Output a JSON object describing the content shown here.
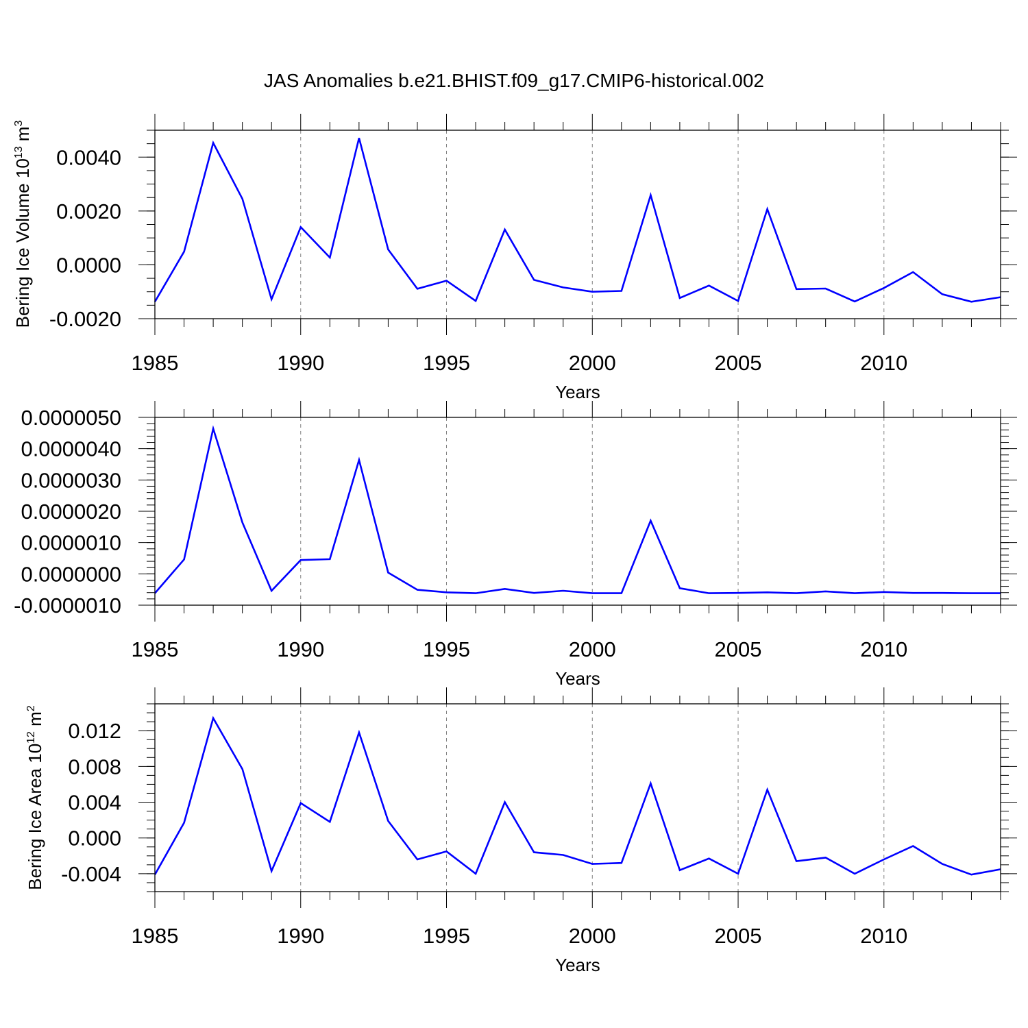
{
  "title": "JAS Anomalies b.e21.BHIST.f09_g17.CMIP6-historical.002",
  "colors": {
    "line": "#0000ff",
    "axis": "#000000",
    "grid": "#808080"
  },
  "chart_data": [
    {
      "type": "line",
      "xlabel": "Years",
      "ylabel": {
        "text": "Bering Ice Volume 10",
        "sup": "13",
        "unit": " m",
        "unit_sup": "3"
      },
      "xlim": [
        1985,
        2014
      ],
      "ylim": [
        -0.002,
        0.005
      ],
      "xticks": [
        1985,
        1990,
        1995,
        2000,
        2005,
        2010
      ],
      "xtick_labels": [
        "1985",
        "1990",
        "1995",
        "2000",
        "2005",
        "2010"
      ],
      "yticks": [
        -0.002,
        0.0,
        0.002,
        0.004
      ],
      "ytick_labels": [
        "-0.0020",
        "0.0000",
        "0.0020",
        "0.0040"
      ],
      "grid": "vertical dashed at major x ticks",
      "series": [
        {
          "x": [
            1985,
            1986,
            1987,
            1988,
            1989,
            1990,
            1991,
            1992,
            1993,
            1994,
            1995,
            1996,
            1997,
            1998,
            1999,
            2000,
            2001,
            2002,
            2003,
            2004,
            2005,
            2006,
            2007,
            2008,
            2009,
            2010,
            2011,
            2012,
            2013,
            2014
          ],
          "values": [
            -0.00137,
            0.00049,
            0.00453,
            0.00245,
            -0.00128,
            0.0014,
            0.00027,
            0.00471,
            0.00057,
            -0.00089,
            -0.00059,
            -0.00134,
            0.00131,
            -0.00056,
            -0.00084,
            -0.001,
            -0.00097,
            0.00259,
            -0.00123,
            -0.00077,
            -0.00134,
            0.00207,
            -0.0009,
            -0.00088,
            -0.00136,
            -0.00086,
            -0.00027,
            -0.00109,
            -0.00137,
            -0.0012
          ]
        }
      ]
    },
    {
      "type": "line",
      "xlabel": "Years",
      "xlim": [
        1985,
        2014
      ],
      "ylim": [
        -1e-06,
        5e-06
      ],
      "xticks": [
        1985,
        1990,
        1995,
        2000,
        2005,
        2010
      ],
      "xtick_labels": [
        "1985",
        "1990",
        "1995",
        "2000",
        "2005",
        "2010"
      ],
      "yticks": [
        -1e-06,
        0.0,
        1e-06,
        2e-06,
        3e-06,
        4e-06,
        5e-06
      ],
      "ytick_labels": [
        "-0.0000010",
        "0.0000000",
        "0.0000010",
        "0.0000020",
        "0.0000030",
        "0.0000040",
        "0.0000050"
      ],
      "grid": "vertical dashed at major x ticks",
      "series": [
        {
          "x": [
            1985,
            1986,
            1987,
            1988,
            1989,
            1990,
            1991,
            1992,
            1993,
            1994,
            1995,
            1996,
            1997,
            1998,
            1999,
            2000,
            2001,
            2002,
            2003,
            2004,
            2005,
            2006,
            2007,
            2008,
            2009,
            2010,
            2011,
            2012,
            2013,
            2014
          ],
          "values": [
            -6.2e-07,
            4.6e-07,
            4.64e-06,
            1.64e-06,
            -5.4e-07,
            4.4e-07,
            4.7e-07,
            3.64e-06,
            4e-08,
            -5.1e-07,
            -5.9e-07,
            -6.2e-07,
            -4.8e-07,
            -6.1e-07,
            -5.4e-07,
            -6.2e-07,
            -6.2e-07,
            1.7e-06,
            -4.6e-07,
            -6.2e-07,
            -6.1e-07,
            -5.9e-07,
            -6.2e-07,
            -5.6e-07,
            -6.2e-07,
            -5.8e-07,
            -6.1e-07,
            -6.1e-07,
            -6.2e-07,
            -6.2e-07
          ]
        }
      ]
    },
    {
      "type": "line",
      "xlabel": "Years",
      "ylabel": {
        "text": "Bering Ice Area 10",
        "sup": "12",
        "unit": " m",
        "unit_sup": "2"
      },
      "xlim": [
        1985,
        2014
      ],
      "ylim": [
        -0.006,
        0.015
      ],
      "xticks": [
        1985,
        1990,
        1995,
        2000,
        2005,
        2010
      ],
      "xtick_labels": [
        "1985",
        "1990",
        "1995",
        "2000",
        "2005",
        "2010"
      ],
      "yticks": [
        -0.004,
        0.0,
        0.004,
        0.008,
        0.012
      ],
      "ytick_labels": [
        "-0.004",
        "0.000",
        "0.004",
        "0.008",
        "0.012"
      ],
      "grid": "vertical dashed at major x ticks",
      "series": [
        {
          "x": [
            1985,
            1986,
            1987,
            1988,
            1989,
            1990,
            1991,
            1992,
            1993,
            1994,
            1995,
            1996,
            1997,
            1998,
            1999,
            2000,
            2001,
            2002,
            2003,
            2004,
            2005,
            2006,
            2007,
            2008,
            2009,
            2010,
            2011,
            2012,
            2013,
            2014
          ],
          "values": [
            -0.0041,
            0.0017,
            0.0134,
            0.0077,
            -0.0037,
            0.0039,
            0.0018,
            0.0118,
            0.0019,
            -0.0024,
            -0.0015,
            -0.004,
            0.004,
            -0.0016,
            -0.0019,
            -0.0029,
            -0.0028,
            0.0061,
            -0.0036,
            -0.0023,
            -0.004,
            0.0054,
            -0.0026,
            -0.0022,
            -0.004,
            -0.0024,
            -0.0009,
            -0.0029,
            -0.0041,
            -0.0035
          ]
        }
      ]
    }
  ]
}
